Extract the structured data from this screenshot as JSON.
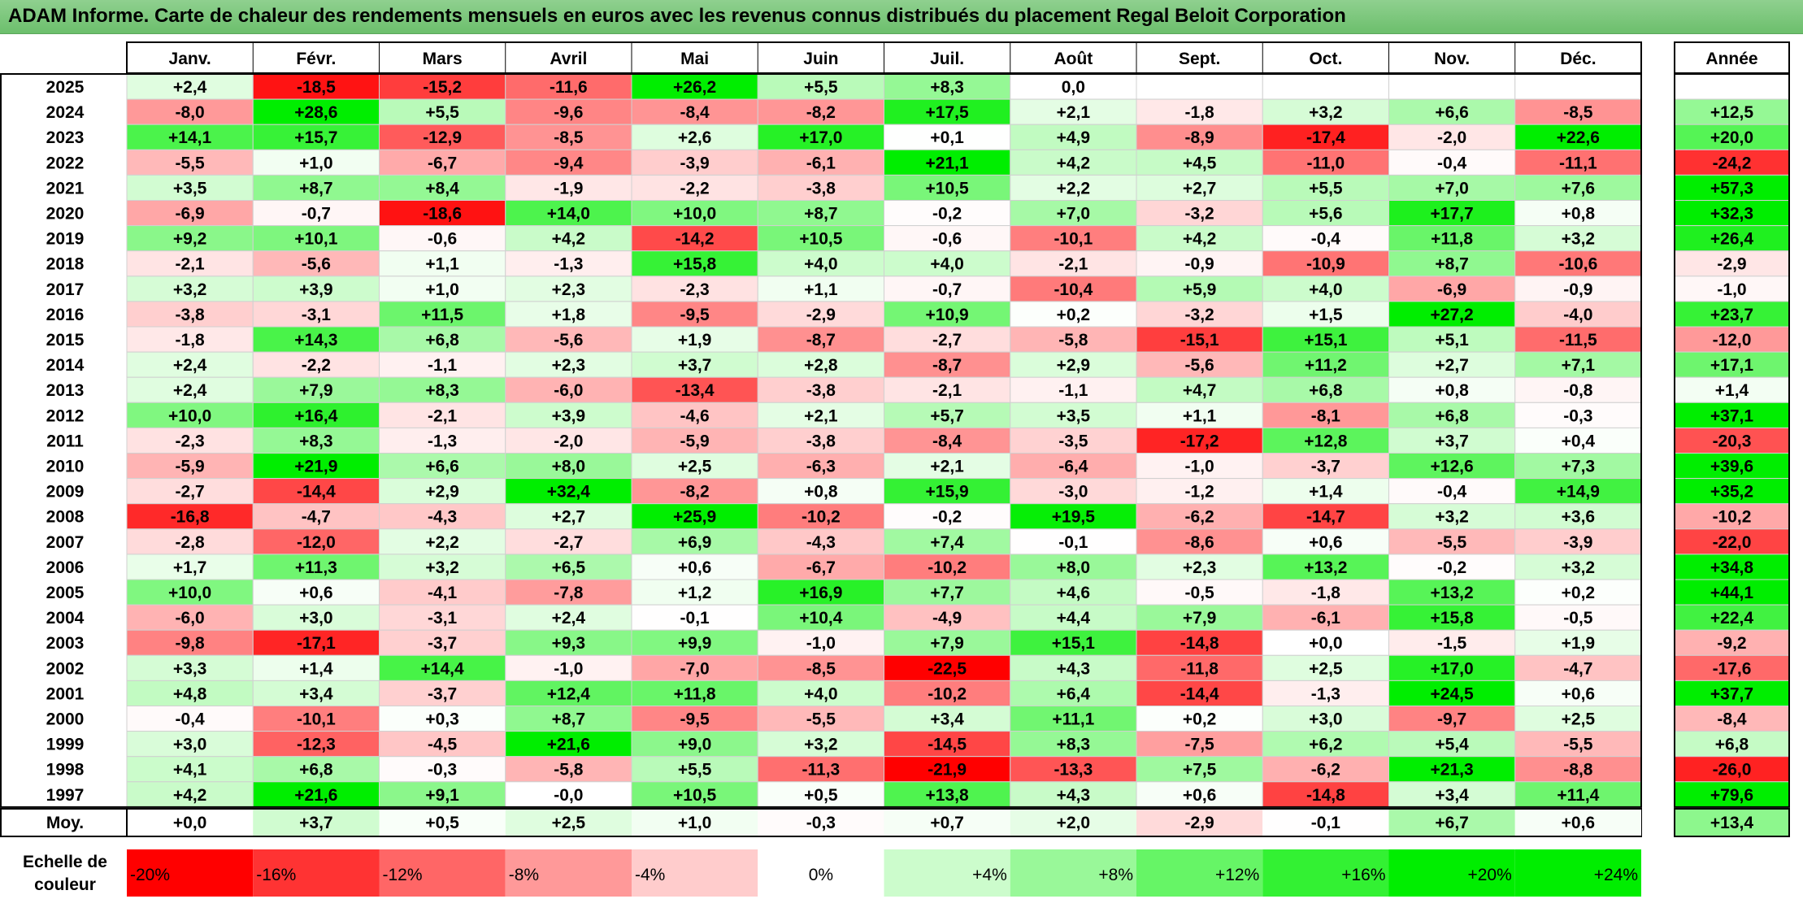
{
  "title": "ADAM Informe. Carte de chaleur des rendements mensuels en euros avec les revenus connus distribués du placement Regal Beloit Corporation",
  "chart_data": {
    "type": "heatmap",
    "months": [
      "Janv.",
      "Févr.",
      "Mars",
      "Avril",
      "Mai",
      "Juin",
      "Juil.",
      "Août",
      "Sept.",
      "Oct.",
      "Nov.",
      "Déc."
    ],
    "year_header": "Année",
    "rows": [
      {
        "year": "2025",
        "months": [
          "+2,4",
          "-18,5",
          "-15,2",
          "-11,6",
          "+26,2",
          "+5,5",
          "+8,3",
          "0,0",
          "",
          "",
          "",
          ""
        ],
        "annual": ""
      },
      {
        "year": "2024",
        "months": [
          "-8,0",
          "+28,6",
          "+5,5",
          "-9,6",
          "-8,4",
          "-8,2",
          "+17,5",
          "+2,1",
          "-1,8",
          "+3,2",
          "+6,6",
          "-8,5"
        ],
        "annual": "+12,5"
      },
      {
        "year": "2023",
        "months": [
          "+14,1",
          "+15,7",
          "-12,9",
          "-8,5",
          "+2,6",
          "+17,0",
          "+0,1",
          "+4,9",
          "-8,9",
          "-17,4",
          "-2,0",
          "+22,6"
        ],
        "annual": "+20,0"
      },
      {
        "year": "2022",
        "months": [
          "-5,5",
          "+1,0",
          "-6,7",
          "-9,4",
          "-3,9",
          "-6,1",
          "+21,1",
          "+4,2",
          "+4,5",
          "-11,0",
          "-0,4",
          "-11,1"
        ],
        "annual": "-24,2"
      },
      {
        "year": "2021",
        "months": [
          "+3,5",
          "+8,7",
          "+8,4",
          "-1,9",
          "-2,2",
          "-3,8",
          "+10,5",
          "+2,2",
          "+2,7",
          "+5,5",
          "+7,0",
          "+7,6"
        ],
        "annual": "+57,3"
      },
      {
        "year": "2020",
        "months": [
          "-6,9",
          "-0,7",
          "-18,6",
          "+14,0",
          "+10,0",
          "+8,7",
          "-0,2",
          "+7,0",
          "-3,2",
          "+5,6",
          "+17,7",
          "+0,8"
        ],
        "annual": "+32,3"
      },
      {
        "year": "2019",
        "months": [
          "+9,2",
          "+10,1",
          "-0,6",
          "+4,2",
          "-14,2",
          "+10,5",
          "-0,6",
          "-10,1",
          "+4,2",
          "-0,4",
          "+11,8",
          "+3,2"
        ],
        "annual": "+26,4"
      },
      {
        "year": "2018",
        "months": [
          "-2,1",
          "-5,6",
          "+1,1",
          "-1,3",
          "+15,8",
          "+4,0",
          "+4,0",
          "-2,1",
          "-0,9",
          "-10,9",
          "+8,7",
          "-10,6"
        ],
        "annual": "-2,9"
      },
      {
        "year": "2017",
        "months": [
          "+3,2",
          "+3,9",
          "+1,0",
          "+2,3",
          "-2,3",
          "+1,1",
          "-0,7",
          "-10,4",
          "+5,9",
          "+4,0",
          "-6,9",
          "-0,9"
        ],
        "annual": "-1,0"
      },
      {
        "year": "2016",
        "months": [
          "-3,8",
          "-3,1",
          "+11,5",
          "+1,8",
          "-9,5",
          "-2,9",
          "+10,9",
          "+0,2",
          "-3,2",
          "+1,5",
          "+27,2",
          "-4,0"
        ],
        "annual": "+23,7"
      },
      {
        "year": "2015",
        "months": [
          "-1,8",
          "+14,3",
          "+6,8",
          "-5,6",
          "+1,9",
          "-8,7",
          "-2,7",
          "-5,8",
          "-15,1",
          "+15,1",
          "+5,1",
          "-11,5"
        ],
        "annual": "-12,0"
      },
      {
        "year": "2014",
        "months": [
          "+2,4",
          "-2,2",
          "-1,1",
          "+2,3",
          "+3,7",
          "+2,8",
          "-8,7",
          "+2,9",
          "-5,6",
          "+11,2",
          "+2,7",
          "+7,1"
        ],
        "annual": "+17,1"
      },
      {
        "year": "2013",
        "months": [
          "+2,4",
          "+7,9",
          "+8,3",
          "-6,0",
          "-13,4",
          "-3,8",
          "-2,1",
          "-1,1",
          "+4,7",
          "+6,8",
          "+0,8",
          "-0,8"
        ],
        "annual": "+1,4"
      },
      {
        "year": "2012",
        "months": [
          "+10,0",
          "+16,4",
          "-2,1",
          "+3,9",
          "-4,6",
          "+2,1",
          "+5,7",
          "+3,5",
          "+1,1",
          "-8,1",
          "+6,8",
          "-0,3"
        ],
        "annual": "+37,1"
      },
      {
        "year": "2011",
        "months": [
          "-2,3",
          "+8,3",
          "-1,3",
          "-2,0",
          "-5,9",
          "-3,8",
          "-8,4",
          "-3,5",
          "-17,2",
          "+12,8",
          "+3,7",
          "+0,4"
        ],
        "annual": "-20,3"
      },
      {
        "year": "2010",
        "months": [
          "-5,9",
          "+21,9",
          "+6,6",
          "+8,0",
          "+2,5",
          "-6,3",
          "+2,1",
          "-6,4",
          "-1,0",
          "-3,7",
          "+12,6",
          "+7,3"
        ],
        "annual": "+39,6"
      },
      {
        "year": "2009",
        "months": [
          "-2,7",
          "-14,4",
          "+2,9",
          "+32,4",
          "-8,2",
          "+0,8",
          "+15,9",
          "-3,0",
          "-1,2",
          "+1,4",
          "-0,4",
          "+14,9"
        ],
        "annual": "+35,2"
      },
      {
        "year": "2008",
        "months": [
          "-16,8",
          "-4,7",
          "-4,3",
          "+2,7",
          "+25,9",
          "-10,2",
          "-0,2",
          "+19,5",
          "-6,2",
          "-14,7",
          "+3,2",
          "+3,6"
        ],
        "annual": "-10,2"
      },
      {
        "year": "2007",
        "months": [
          "-2,8",
          "-12,0",
          "+2,2",
          "-2,7",
          "+6,9",
          "-4,3",
          "+7,4",
          "-0,1",
          "-8,6",
          "+0,6",
          "-5,5",
          "-3,9"
        ],
        "annual": "-22,0"
      },
      {
        "year": "2006",
        "months": [
          "+1,7",
          "+11,3",
          "+3,2",
          "+6,5",
          "+0,6",
          "-6,7",
          "-10,2",
          "+8,0",
          "+2,3",
          "+13,2",
          "-0,2",
          "+3,2"
        ],
        "annual": "+34,8"
      },
      {
        "year": "2005",
        "months": [
          "+10,0",
          "+0,6",
          "-4,1",
          "-7,8",
          "+1,2",
          "+16,9",
          "+7,7",
          "+4,6",
          "-0,5",
          "-1,8",
          "+13,2",
          "+0,2"
        ],
        "annual": "+44,1"
      },
      {
        "year": "2004",
        "months": [
          "-6,0",
          "+3,0",
          "-3,1",
          "+2,4",
          "-0,1",
          "+10,4",
          "-4,9",
          "+4,4",
          "+7,9",
          "-6,1",
          "+15,8",
          "-0,5"
        ],
        "annual": "+22,4"
      },
      {
        "year": "2003",
        "months": [
          "-9,8",
          "-17,1",
          "-3,7",
          "+9,3",
          "+9,9",
          "-1,0",
          "+7,9",
          "+15,1",
          "-14,8",
          "+0,0",
          "-1,5",
          "+1,9"
        ],
        "annual": "-9,2"
      },
      {
        "year": "2002",
        "months": [
          "+3,3",
          "+1,4",
          "+14,4",
          "-1,0",
          "-7,0",
          "-8,5",
          "-22,5",
          "+4,3",
          "-11,8",
          "+2,5",
          "+17,0",
          "-4,7"
        ],
        "annual": "-17,6"
      },
      {
        "year": "2001",
        "months": [
          "+4,8",
          "+3,4",
          "-3,7",
          "+12,4",
          "+11,8",
          "+4,0",
          "-10,2",
          "+6,4",
          "-14,4",
          "-1,3",
          "+24,5",
          "+0,6"
        ],
        "annual": "+37,7"
      },
      {
        "year": "2000",
        "months": [
          "-0,4",
          "-10,1",
          "+0,3",
          "+8,7",
          "-9,5",
          "-5,5",
          "+3,4",
          "+11,1",
          "+0,2",
          "+3,0",
          "-9,7",
          "+2,5"
        ],
        "annual": "-8,4"
      },
      {
        "year": "1999",
        "months": [
          "+3,0",
          "-12,3",
          "-4,5",
          "+21,6",
          "+9,0",
          "+3,2",
          "-14,5",
          "+8,3",
          "-7,5",
          "+6,2",
          "+5,4",
          "-5,5"
        ],
        "annual": "+6,8"
      },
      {
        "year": "1998",
        "months": [
          "+4,1",
          "+6,8",
          "-0,3",
          "-5,8",
          "+5,5",
          "-11,3",
          "-21,9",
          "-13,3",
          "+7,5",
          "-6,2",
          "+21,3",
          "-8,8"
        ],
        "annual": "-26,0"
      },
      {
        "year": "1997",
        "months": [
          "+4,2",
          "+21,6",
          "+9,1",
          "-0,0",
          "+10,5",
          "+0,5",
          "+13,8",
          "+4,3",
          "+0,6",
          "-14,8",
          "+3,4",
          "+11,4"
        ],
        "annual": "+79,6"
      }
    ],
    "average": {
      "label": "Moy.",
      "months": [
        "+0,0",
        "+3,7",
        "+0,5",
        "+2,5",
        "+1,0",
        "-0,3",
        "+0,7",
        "+2,0",
        "-2,9",
        "-0,1",
        "+6,7",
        "+0,6"
      ],
      "annual": "+13,4"
    },
    "scale": {
      "label_line1": "Echelle de",
      "label_line2": "couleur",
      "items": [
        "-20%",
        "-16%",
        "-12%",
        "-8%",
        "-4%",
        "0%",
        "+4%",
        "+8%",
        "+12%",
        "+16%",
        "+20%",
        "+24%"
      ],
      "values": [
        -20,
        -16,
        -12,
        -8,
        -4,
        0,
        4,
        8,
        12,
        16,
        20,
        24
      ]
    },
    "colors": {
      "negative": "#ff0000",
      "neutral": "#ffffff",
      "positive": "#00ee00",
      "title_bg": "#7dc87d"
    }
  }
}
